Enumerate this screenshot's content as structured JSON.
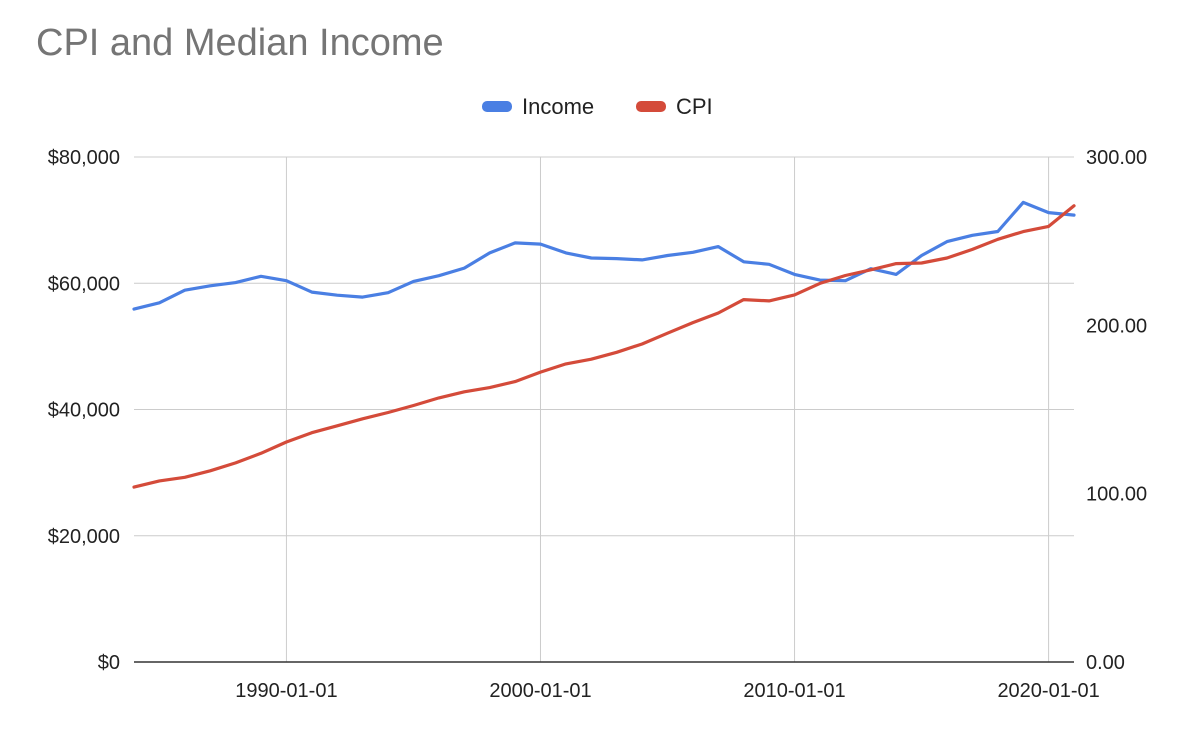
{
  "chart_data": {
    "type": "line",
    "title": "CPI and Median Income",
    "xlabel": "",
    "ylabel": "",
    "legend_position": "top",
    "grid": true,
    "x_ticks": [
      "1990-01-01",
      "2000-01-01",
      "2010-01-01",
      "2020-01-01"
    ],
    "xlim": [
      1984,
      2021
    ],
    "y_left": {
      "ticks": [
        "$0",
        "$20,000",
        "$40,000",
        "$60,000",
        "$80,000"
      ],
      "range": [
        0,
        80000
      ]
    },
    "y_right": {
      "ticks": [
        "0.00",
        "100.00",
        "200.00",
        "300.00"
      ],
      "range": [
        0,
        300
      ]
    },
    "x": [
      1984,
      1985,
      1986,
      1987,
      1988,
      1989,
      1990,
      1991,
      1992,
      1993,
      1994,
      1995,
      1996,
      1997,
      1998,
      1999,
      2000,
      2001,
      2002,
      2003,
      2004,
      2005,
      2006,
      2007,
      2008,
      2009,
      2010,
      2011,
      2012,
      2013,
      2014,
      2015,
      2016,
      2017,
      2018,
      2019,
      2020,
      2021
    ],
    "series": [
      {
        "name": "Income",
        "axis": "left",
        "color": "#4a7fe3",
        "values": [
          55900,
          56900,
          58900,
          59600,
          60100,
          61100,
          60400,
          58600,
          58100,
          57800,
          58500,
          60300,
          61200,
          62400,
          64800,
          66400,
          66200,
          64800,
          64000,
          63900,
          63700,
          64400,
          64900,
          65800,
          63400,
          63000,
          61400,
          60500,
          60400,
          62300,
          61400,
          64400,
          66600,
          67600,
          68200,
          72800,
          71200,
          70800
        ]
      },
      {
        "name": "CPI",
        "axis": "right",
        "color": "#d44b3a",
        "values": [
          103.9,
          107.6,
          109.7,
          113.6,
          118.3,
          124.0,
          130.7,
          136.2,
          140.3,
          144.5,
          148.2,
          152.4,
          156.9,
          160.5,
          163.0,
          166.6,
          172.2,
          177.1,
          179.9,
          184.0,
          188.9,
          195.3,
          201.6,
          207.3,
          215.3,
          214.5,
          218.1,
          224.9,
          229.6,
          233.0,
          236.7,
          237.0,
          240.0,
          245.1,
          251.1,
          255.7,
          258.8,
          271.0
        ]
      }
    ]
  }
}
